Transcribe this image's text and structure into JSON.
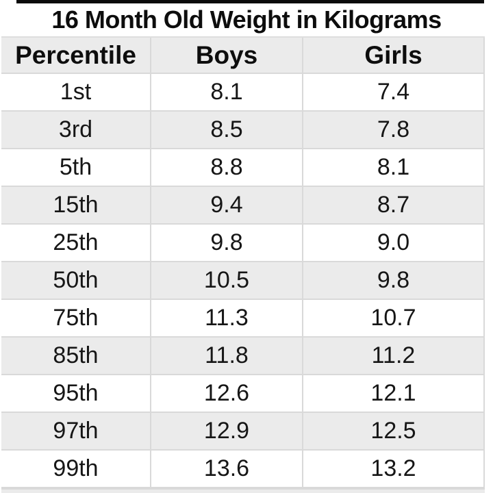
{
  "title": "16 Month Old Weight in Kilograms",
  "table": {
    "headers": [
      "Percentile",
      "Boys",
      "Girls"
    ],
    "rows": [
      {
        "percentile": "1st",
        "boys": "8.1",
        "girls": "7.4"
      },
      {
        "percentile": "3rd",
        "boys": "8.5",
        "girls": "7.8"
      },
      {
        "percentile": "5th",
        "boys": "8.8",
        "girls": "8.1"
      },
      {
        "percentile": "15th",
        "boys": "9.4",
        "girls": "8.7"
      },
      {
        "percentile": "25th",
        "boys": "9.8",
        "girls": "9.0"
      },
      {
        "percentile": "50th",
        "boys": "10.5",
        "girls": "9.8"
      },
      {
        "percentile": "75th",
        "boys": "11.3",
        "girls": "10.7"
      },
      {
        "percentile": "85th",
        "boys": "11.8",
        "girls": "11.2"
      },
      {
        "percentile": "95th",
        "boys": "12.6",
        "girls": "12.1"
      },
      {
        "percentile": "97th",
        "boys": "12.9",
        "girls": "12.5"
      },
      {
        "percentile": "99th",
        "boys": "13.6",
        "girls": "13.2"
      }
    ]
  },
  "colors": {
    "stripe": "#ebebeb",
    "grid_line": "#d9d9d9",
    "top_border": "#0b0b0b",
    "text": "#161616"
  },
  "chart_data": {
    "type": "table",
    "title": "16 Month Old Weight in Kilograms",
    "columns": [
      "Percentile",
      "Boys",
      "Girls"
    ],
    "rows": [
      [
        "1st",
        8.1,
        7.4
      ],
      [
        "3rd",
        8.5,
        7.8
      ],
      [
        "5th",
        8.8,
        8.1
      ],
      [
        "15th",
        9.4,
        8.7
      ],
      [
        "25th",
        9.8,
        9.0
      ],
      [
        "50th",
        10.5,
        9.8
      ],
      [
        "75th",
        11.3,
        10.7
      ],
      [
        "85th",
        11.8,
        11.2
      ],
      [
        "95th",
        12.6,
        12.1
      ],
      [
        "97th",
        12.9,
        12.5
      ],
      [
        "99th",
        13.6,
        13.2
      ]
    ],
    "units": "kilograms",
    "notes": "Weight percentiles for 16-month-old boys and girls; alternating striped rows, grid on"
  }
}
